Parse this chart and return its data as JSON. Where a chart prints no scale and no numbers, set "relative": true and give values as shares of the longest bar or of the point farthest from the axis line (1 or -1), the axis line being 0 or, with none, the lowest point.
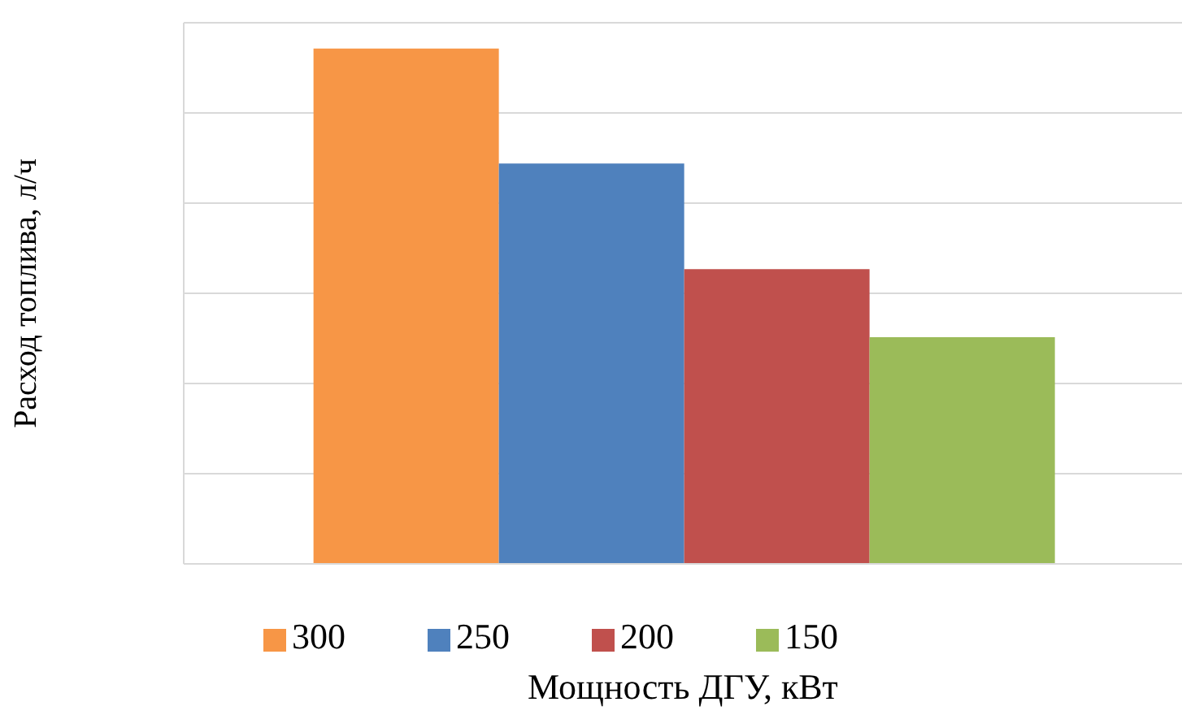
{
  "chart_data": {
    "type": "bar",
    "relative": true,
    "xlabel": "Мощность ДГУ, кВт",
    "ylabel": "Расход топлива, л/ч",
    "categories": [
      null
    ],
    "series": [
      {
        "name": "300",
        "color": "#f79646",
        "values": [
          1
        ]
      },
      {
        "name": "250",
        "color": "#4f81bd",
        "values": [
          0.777
        ]
      },
      {
        "name": "200",
        "color": "#c0504d",
        "values": [
          0.572
        ]
      },
      {
        "name": "150",
        "color": "#9bbb59",
        "values": [
          0.44
        ]
      }
    ],
    "grid": "y",
    "legend": "bottom"
  }
}
